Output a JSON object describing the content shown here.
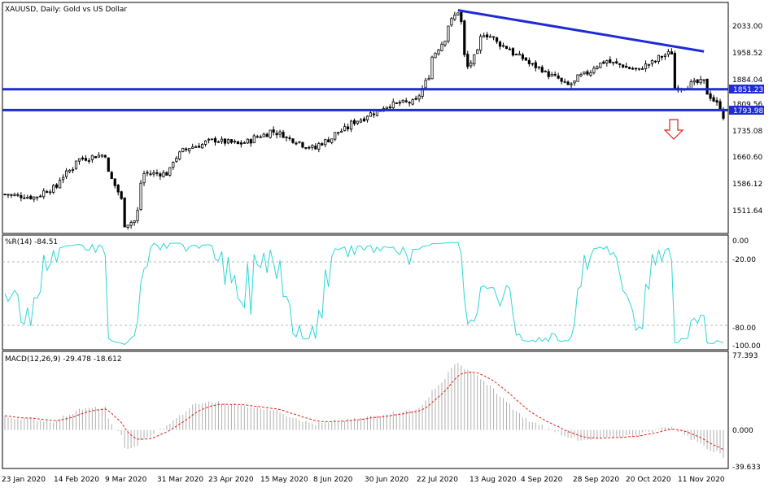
{
  "price_panel": {
    "title": "XAUUSD, Daily:  Gold vs US Dollar",
    "ticks": [
      "2033.00",
      "1958.52",
      "1884.04",
      "1809.56",
      "1735.08",
      "1660.60",
      "1586.12",
      "1511.64"
    ],
    "level_badges": [
      {
        "value": "1851.23",
        "color": "#1f2bd6"
      },
      {
        "value": "1793.98",
        "color": "#1f2bd6"
      }
    ],
    "arrow": "down-arrow-icon",
    "trendline_color": "#1f2bd6",
    "arrow_color": "#e02020",
    "candle_color": "#000000"
  },
  "wr_panel": {
    "label": "%R(14) -84.51",
    "ticks": [
      "0.00",
      "-20.00",
      "-80.00",
      "-100.00"
    ],
    "line_color": "#2fd6d6"
  },
  "macd_panel": {
    "label": "MACD(12,26,9) -29.478 -18.612",
    "ticks": [
      "77.393",
      "0.000",
      "-39.633"
    ],
    "hist_color": "#b0b0b0",
    "signal_color": "#e02020"
  },
  "x_axis": {
    "labels": [
      "23 Jan 2020",
      "14 Feb 2020",
      "9 Mar 2020",
      "31 Mar 2020",
      "23 Apr 2020",
      "15 May 2020",
      "8 Jun 2020",
      "30 Jun 2020",
      "22 Jul 2020",
      "13 Aug 2020",
      "4 Sep 2020",
      "28 Sep 2020",
      "20 Oct 2020",
      "11 Nov 2020"
    ]
  },
  "chart_data": {
    "type": "candlestick",
    "symbol": "XAUUSD",
    "timeframe": "Daily",
    "ylim": [
      1460,
      2085
    ],
    "horizontal_levels": [
      1851.23,
      1793.98
    ],
    "trendline": {
      "from": [
        "2020-08-06",
        2068
      ],
      "to": [
        "2020-11-20",
        1955
      ]
    },
    "close_anchors": [
      [
        "2020-01-23",
        1563
      ],
      [
        "2020-02-05",
        1555
      ],
      [
        "2020-02-14",
        1583
      ],
      [
        "2020-02-24",
        1658
      ],
      [
        "2020-03-06",
        1672
      ],
      [
        "2020-03-12",
        1570
      ],
      [
        "2020-03-16",
        1480
      ],
      [
        "2020-03-19",
        1490
      ],
      [
        "2020-03-24",
        1620
      ],
      [
        "2020-04-02",
        1620
      ],
      [
        "2020-04-09",
        1683
      ],
      [
        "2020-04-23",
        1712
      ],
      [
        "2020-05-04",
        1700
      ],
      [
        "2020-05-18",
        1737
      ],
      [
        "2020-06-05",
        1688
      ],
      [
        "2020-06-24",
        1766
      ],
      [
        "2020-07-08",
        1809
      ],
      [
        "2020-07-20",
        1818
      ],
      [
        "2020-07-27",
        1940
      ],
      [
        "2020-08-06",
        2065
      ],
      [
        "2020-08-11",
        1912
      ],
      [
        "2020-08-18",
        2005
      ],
      [
        "2020-09-04",
        1932
      ],
      [
        "2020-09-23",
        1862
      ],
      [
        "2020-10-09",
        1930
      ],
      [
        "2020-10-23",
        1903
      ],
      [
        "2020-11-06",
        1952
      ],
      [
        "2020-11-09",
        1855
      ],
      [
        "2020-11-20",
        1872
      ],
      [
        "2020-11-26",
        1811
      ],
      [
        "2020-11-30",
        1777
      ]
    ],
    "williams_r": {
      "period": 14,
      "last": -84.51,
      "ylim": [
        -100,
        0
      ],
      "levels": [
        -20,
        -80
      ]
    },
    "macd": {
      "params": [
        12,
        26,
        9
      ],
      "macd_last": -29.478,
      "signal_last": -18.612,
      "ylim": [
        -39.633,
        77.393
      ],
      "macd_anchors": [
        [
          "2020-01-23",
          14
        ],
        [
          "2020-02-14",
          9
        ],
        [
          "2020-02-24",
          22
        ],
        [
          "2020-03-06",
          24
        ],
        [
          "2020-03-16",
          -20
        ],
        [
          "2020-03-19",
          -18
        ],
        [
          "2020-04-02",
          4
        ],
        [
          "2020-04-15",
          28
        ],
        [
          "2020-04-23",
          30
        ],
        [
          "2020-05-18",
          22
        ],
        [
          "2020-06-05",
          6
        ],
        [
          "2020-06-24",
          12
        ],
        [
          "2020-07-08",
          18
        ],
        [
          "2020-07-20",
          22
        ],
        [
          "2020-08-06",
          72
        ],
        [
          "2020-08-18",
          52
        ],
        [
          "2020-09-04",
          12
        ],
        [
          "2020-09-28",
          -12
        ],
        [
          "2020-10-23",
          -5
        ],
        [
          "2020-11-06",
          4
        ],
        [
          "2020-11-30",
          -29.478
        ]
      ]
    }
  }
}
